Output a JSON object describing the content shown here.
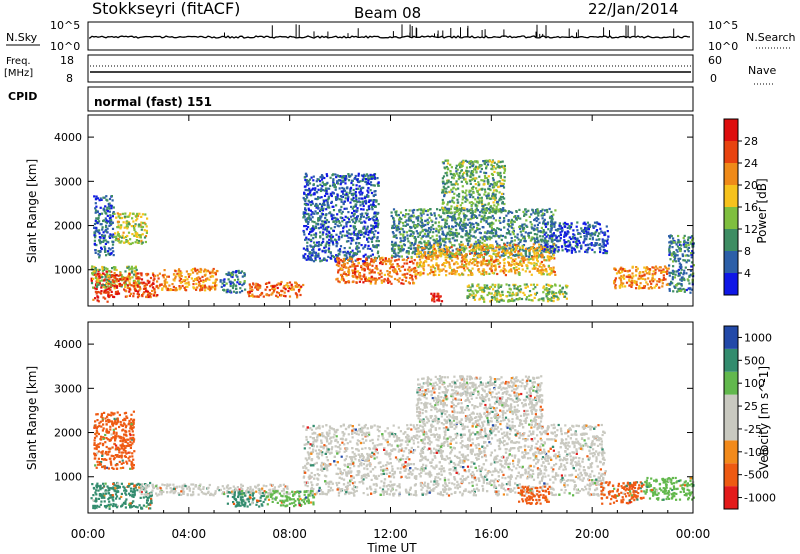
{
  "header": {
    "station": "Stokkseyri (fitACF)",
    "beam": "Beam 08",
    "date": "22/Jan/2014"
  },
  "panels": {
    "nsky": {
      "left_label": "N.Sky",
      "tick_top": "10^5",
      "tick_bottom": "10^0",
      "right_label": "N.Search",
      "right_tick_top": "10^5",
      "right_tick_bottom": "10^0"
    },
    "freq": {
      "label_line1": "Freq.",
      "label_line2": "[MHz]",
      "tick_top": "18",
      "tick_bottom": "8",
      "right_label": "Nave",
      "right_tick_top": "60",
      "right_tick_bottom": "0"
    },
    "cpid": {
      "label": "CPID",
      "value": "normal (fast) 151"
    }
  },
  "colors": {
    "power": [
      "#0f17e6",
      "#2c5fa8",
      "#3e8d63",
      "#7fbf3f",
      "#f6c21c",
      "#ef8a18",
      "#e8430f",
      "#de0d0d"
    ],
    "velocity": [
      "#e31a1a",
      "#ee5a12",
      "#f28a1b",
      "#c9c9c0",
      "#c9c9c0",
      "#62b84d",
      "#338c6e",
      "#2249a8"
    ]
  },
  "chart_data": [
    {
      "type": "heatmap",
      "name": "power",
      "ylabel": "Slant Range [km]",
      "xlabel": "",
      "x_ticks": [
        "00:00",
        "04:00",
        "08:00",
        "12:00",
        "16:00",
        "20:00",
        "00:00"
      ],
      "x_range_hours": [
        0,
        24
      ],
      "y_ticks": [
        1000,
        2000,
        3000,
        4000
      ],
      "ylim": [
        180,
        4500
      ],
      "colorbar": {
        "label": "Power [dB]",
        "ticks": [
          "4",
          "8",
          "12",
          "16",
          "20",
          "24",
          "28"
        ],
        "range": [
          0,
          32
        ]
      },
      "regions": [
        {
          "t0": 0.1,
          "t1": 0.9,
          "r0": 300,
          "r1": 1000,
          "value": 28
        },
        {
          "t0": 0.1,
          "t1": 2.0,
          "r0": 600,
          "r1": 1100,
          "value": 14
        },
        {
          "t0": 0.2,
          "t1": 1.0,
          "r0": 1300,
          "r1": 2700,
          "value": 7
        },
        {
          "t0": 1.0,
          "t1": 2.3,
          "r0": 1600,
          "r1": 2300,
          "value": 16
        },
        {
          "t0": 0.9,
          "t1": 2.8,
          "r0": 400,
          "r1": 950,
          "value": 26
        },
        {
          "t0": 2.8,
          "t1": 5.1,
          "r0": 550,
          "r1": 1050,
          "value": 22
        },
        {
          "t0": 5.2,
          "t1": 6.2,
          "r0": 500,
          "r1": 1000,
          "value": 8
        },
        {
          "t0": 6.3,
          "t1": 8.5,
          "r0": 400,
          "r1": 750,
          "value": 24
        },
        {
          "t0": 8.5,
          "t1": 11.5,
          "r0": 1200,
          "r1": 3200,
          "value": 6
        },
        {
          "t0": 9.8,
          "t1": 13.0,
          "r0": 700,
          "r1": 1300,
          "value": 24
        },
        {
          "t0": 12.0,
          "t1": 18.5,
          "r0": 1300,
          "r1": 2400,
          "value": 9
        },
        {
          "t0": 13.0,
          "t1": 18.5,
          "r0": 900,
          "r1": 1600,
          "value": 20
        },
        {
          "t0": 14.0,
          "t1": 16.5,
          "r0": 2300,
          "r1": 3500,
          "value": 12
        },
        {
          "t0": 13.5,
          "t1": 14.0,
          "r0": 300,
          "r1": 500,
          "value": 30
        },
        {
          "t0": 15.0,
          "t1": 19.0,
          "r0": 300,
          "r1": 700,
          "value": 14
        },
        {
          "t0": 18.0,
          "t1": 20.6,
          "r0": 1400,
          "r1": 2100,
          "value": 5
        },
        {
          "t0": 20.8,
          "t1": 23.0,
          "r0": 600,
          "r1": 1100,
          "value": 22
        },
        {
          "t0": 23.0,
          "t1": 24.0,
          "r0": 500,
          "r1": 1800,
          "value": 8
        }
      ]
    },
    {
      "type": "heatmap",
      "name": "velocity",
      "ylabel": "Slant Range [km]",
      "xlabel": "Time UT",
      "x_ticks": [
        "00:00",
        "04:00",
        "08:00",
        "12:00",
        "16:00",
        "20:00",
        "00:00"
      ],
      "x_range_hours": [
        0,
        24
      ],
      "y_ticks": [
        1000,
        2000,
        3000,
        4000
      ],
      "ylim": [
        180,
        4500
      ],
      "colorbar": {
        "label": "Velocity [m s^-1]",
        "ticks": [
          "1000",
          "500",
          "100",
          "25",
          "-25",
          "-100",
          "-500",
          "-1000"
        ]
      },
      "regions": [
        {
          "t0": 0.1,
          "t1": 2.5,
          "r0": 300,
          "r1": 900,
          "value": 500
        },
        {
          "t0": 0.2,
          "t1": 1.8,
          "r0": 1200,
          "r1": 2500,
          "value": -500
        },
        {
          "t0": 2.0,
          "t1": 8.0,
          "r0": 600,
          "r1": 850,
          "value": 0
        },
        {
          "t0": 5.5,
          "t1": 7.0,
          "r0": 350,
          "r1": 700,
          "value": 500
        },
        {
          "t0": 7.0,
          "t1": 9.0,
          "r0": 350,
          "r1": 700,
          "value": 100
        },
        {
          "t0": 8.5,
          "t1": 20.5,
          "r0": 600,
          "r1": 2200,
          "value": 0
        },
        {
          "t0": 13.0,
          "t1": 18.0,
          "r0": 2200,
          "r1": 3300,
          "value": 0
        },
        {
          "t0": 17.0,
          "t1": 18.3,
          "r0": 400,
          "r1": 800,
          "value": -500
        },
        {
          "t0": 20.3,
          "t1": 22.0,
          "r0": 400,
          "r1": 900,
          "value": -500
        },
        {
          "t0": 22.0,
          "t1": 24.0,
          "r0": 500,
          "r1": 1000,
          "value": 100
        }
      ]
    }
  ]
}
